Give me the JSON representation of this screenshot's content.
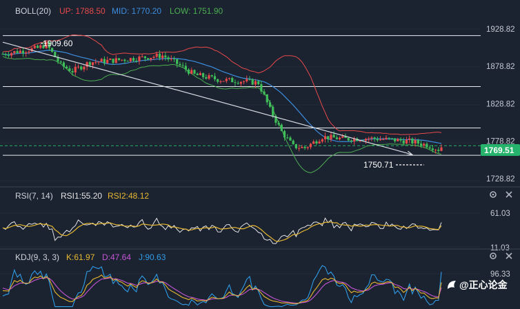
{
  "chart_data": [
    {
      "type": "candlestick",
      "indicator": {
        "name": "BOLL(20)",
        "up_label": "UP: 1788.50",
        "mid_label": "MID: 1770.20",
        "low_label": "LOW: 1751.90",
        "up_color": "#e84a4a",
        "mid_color": "#3d8fe0",
        "low_color": "#4caf50"
      },
      "y_ticks": [
        "1928.82",
        "1878.82",
        "1828.82",
        "1778.82",
        "1728.82"
      ],
      "ylim": [
        1718,
        1942
      ],
      "last_price": "1769.51",
      "annotations": {
        "high": "1909.60",
        "low": "1750.71"
      },
      "horizontal_levels": [
        1920,
        1851,
        1795,
        1758
      ],
      "current_level": 1771,
      "trendline": {
        "from": {
          "i": 0,
          "price": 1911
        },
        "to": {
          "i": 140,
          "price": 1759
        }
      },
      "series_seed": 7
    },
    {
      "type": "line",
      "indicator": {
        "name": "RSI(7, 14)",
        "rsi1_label": "RSI1:55.20",
        "rsi2_label": "RSI2:48.12",
        "rsi1_color": "#e6e6e6",
        "rsi2_color": "#e8b931"
      },
      "y_ticks": [
        "61.03",
        "11.03"
      ],
      "ylim": [
        0,
        100
      ]
    },
    {
      "type": "line",
      "indicator": {
        "name": "KDJ(9, 3, 3)",
        "k_label": "K:61.97",
        "d_label": "D:47.64",
        "j_label": "J:90.63",
        "k_color": "#e8b931",
        "d_color": "#c656d6",
        "j_color": "#2f9de8"
      },
      "y_ticks": [
        "96.33"
      ],
      "ylim": [
        0,
        110
      ]
    }
  ],
  "watermark": {
    "brand": "@正心论金"
  },
  "colors": {
    "bull": "#e84a4a",
    "bear": "#3fbf5a",
    "price_tag_bg": "#26b36b"
  }
}
